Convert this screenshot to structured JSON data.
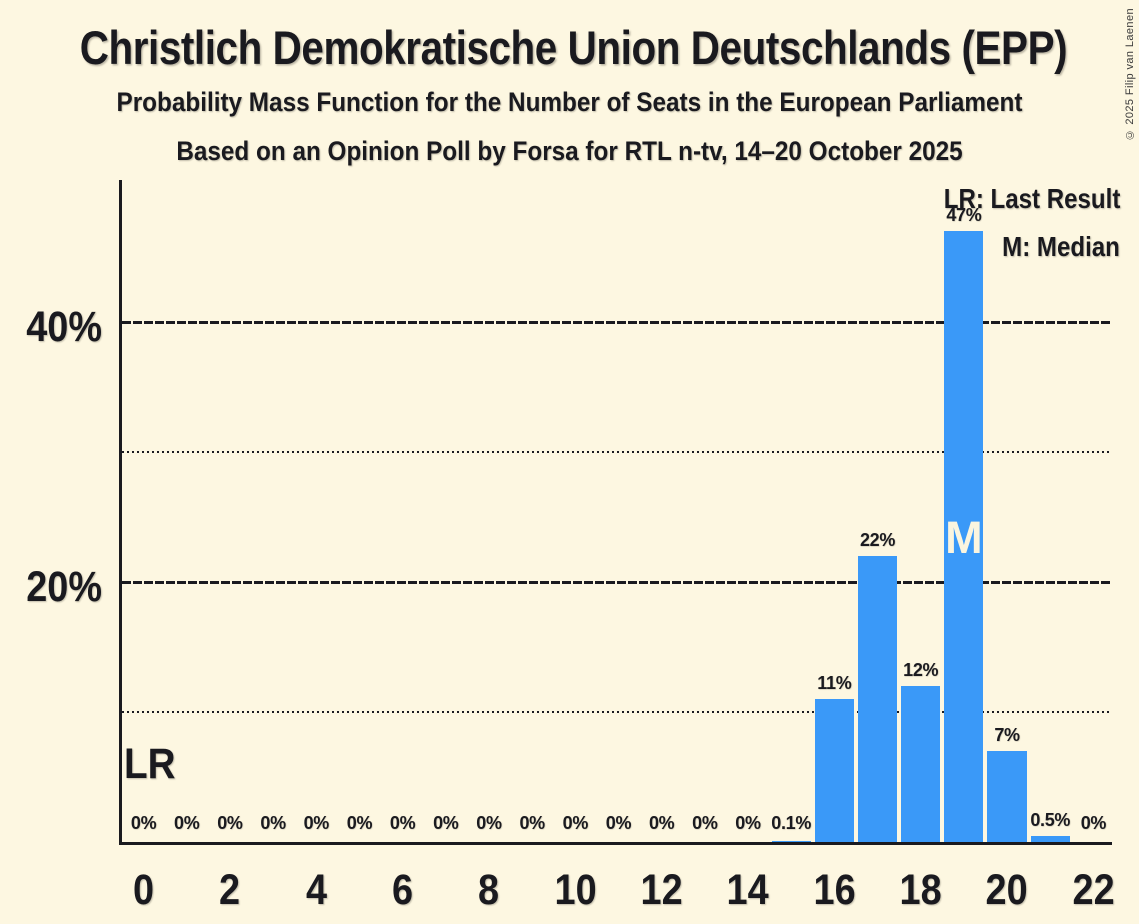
{
  "header": {
    "title": "Christlich Demokratische Union Deutschlands (EPP)",
    "subtitle1": "Probability Mass Function for the Number of Seats in the European Parliament",
    "subtitle2": "Based on an Opinion Poll by Forsa for RTL n-tv, 14–20 October 2025"
  },
  "copyright": "© 2025 Filip van Laenen",
  "legend": {
    "last_result": "LR: Last Result",
    "median": "M: Median"
  },
  "annotations": {
    "last_result_marker": "LR",
    "median_marker": "M"
  },
  "colors": {
    "background": "#FDF7E1",
    "bar": "#3A99F8",
    "ink": "#1A1A1F",
    "median_text": "#FBF5DF"
  },
  "chart_data": {
    "type": "bar",
    "title": "Christlich Demokratische Union Deutschlands (EPP)",
    "xlabel": "",
    "ylabel": "",
    "x": [
      0,
      1,
      2,
      3,
      4,
      5,
      6,
      7,
      8,
      9,
      10,
      11,
      12,
      13,
      14,
      15,
      16,
      17,
      18,
      19,
      20,
      21,
      22
    ],
    "values": [
      0,
      0,
      0,
      0,
      0,
      0,
      0,
      0,
      0,
      0,
      0,
      0,
      0,
      0,
      0,
      0.1,
      11,
      22,
      12,
      47,
      7,
      0.5,
      0
    ],
    "bar_labels": [
      "0%",
      "0%",
      "0%",
      "0%",
      "0%",
      "0%",
      "0%",
      "0%",
      "0%",
      "0%",
      "0%",
      "0%",
      "0%",
      "0%",
      "0%",
      "0.1%",
      "11%",
      "22%",
      "12%",
      "47%",
      "7%",
      "0.5%",
      "0%"
    ],
    "x_tick_labels": [
      "0",
      "2",
      "4",
      "6",
      "8",
      "10",
      "12",
      "14",
      "16",
      "18",
      "20",
      "22"
    ],
    "y_axis": {
      "ticks": [
        {
          "value": 20,
          "label": "20%"
        },
        {
          "value": 40,
          "label": "40%"
        }
      ],
      "range": [
        0,
        51
      ]
    },
    "gridlines": [
      {
        "percent": 10,
        "style": "dotted"
      },
      {
        "percent": 20,
        "style": "dashed"
      },
      {
        "percent": 30,
        "style": "dotted"
      },
      {
        "percent": 40,
        "style": "dashed"
      }
    ],
    "median_seat": 19,
    "last_result_seat": 0,
    "legend_position": "top-right",
    "grid": true
  }
}
